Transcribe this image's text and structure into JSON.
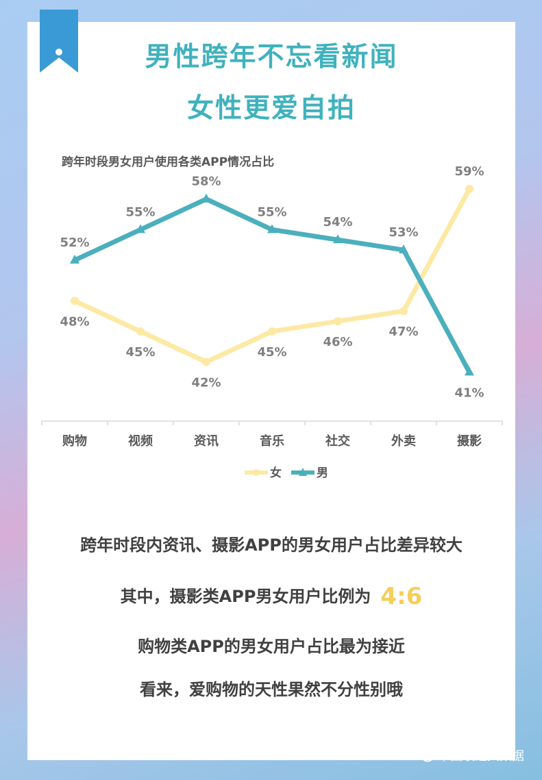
{
  "page": {
    "title_line1": "男性跨年不忘看新闻",
    "title_line2": "女性更爱自拍"
  },
  "chart_data": {
    "type": "line",
    "title": "跨年时段男女用户使用各类APP情况占比",
    "categories": [
      "购物",
      "视频",
      "资讯",
      "音乐",
      "社交",
      "外卖",
      "摄影"
    ],
    "series": [
      {
        "name": "女",
        "color": "#fce9a4",
        "marker": "circle",
        "values": [
          48,
          45,
          42,
          45,
          46,
          47,
          59
        ],
        "labels": [
          "48%",
          "45%",
          "42%",
          "45%",
          "46%",
          "47%",
          "59%"
        ]
      },
      {
        "name": "男",
        "color": "#4bafbd",
        "marker": "triangle",
        "values": [
          52,
          55,
          58,
          55,
          54,
          53,
          41
        ],
        "labels": [
          "52%",
          "55%",
          "58%",
          "55%",
          "54%",
          "53%",
          "41%"
        ]
      }
    ],
    "ylim": [
      38,
      60
    ],
    "grid": false,
    "legend": "bottom"
  },
  "conclusion": {
    "line1": "跨年时段内资讯、摄影APP的男女用户占比差异较大",
    "line2_text": "其中，摄影类APP男女用户比例为",
    "line2_ratio": "4:6",
    "line3": "购物类APP的男女用户占比最为接近",
    "line4": "看来，爱购物的天性果然不分性别哦"
  },
  "watermark": {
    "text": "中国联通大数据",
    "icon": "wechat-icon"
  }
}
